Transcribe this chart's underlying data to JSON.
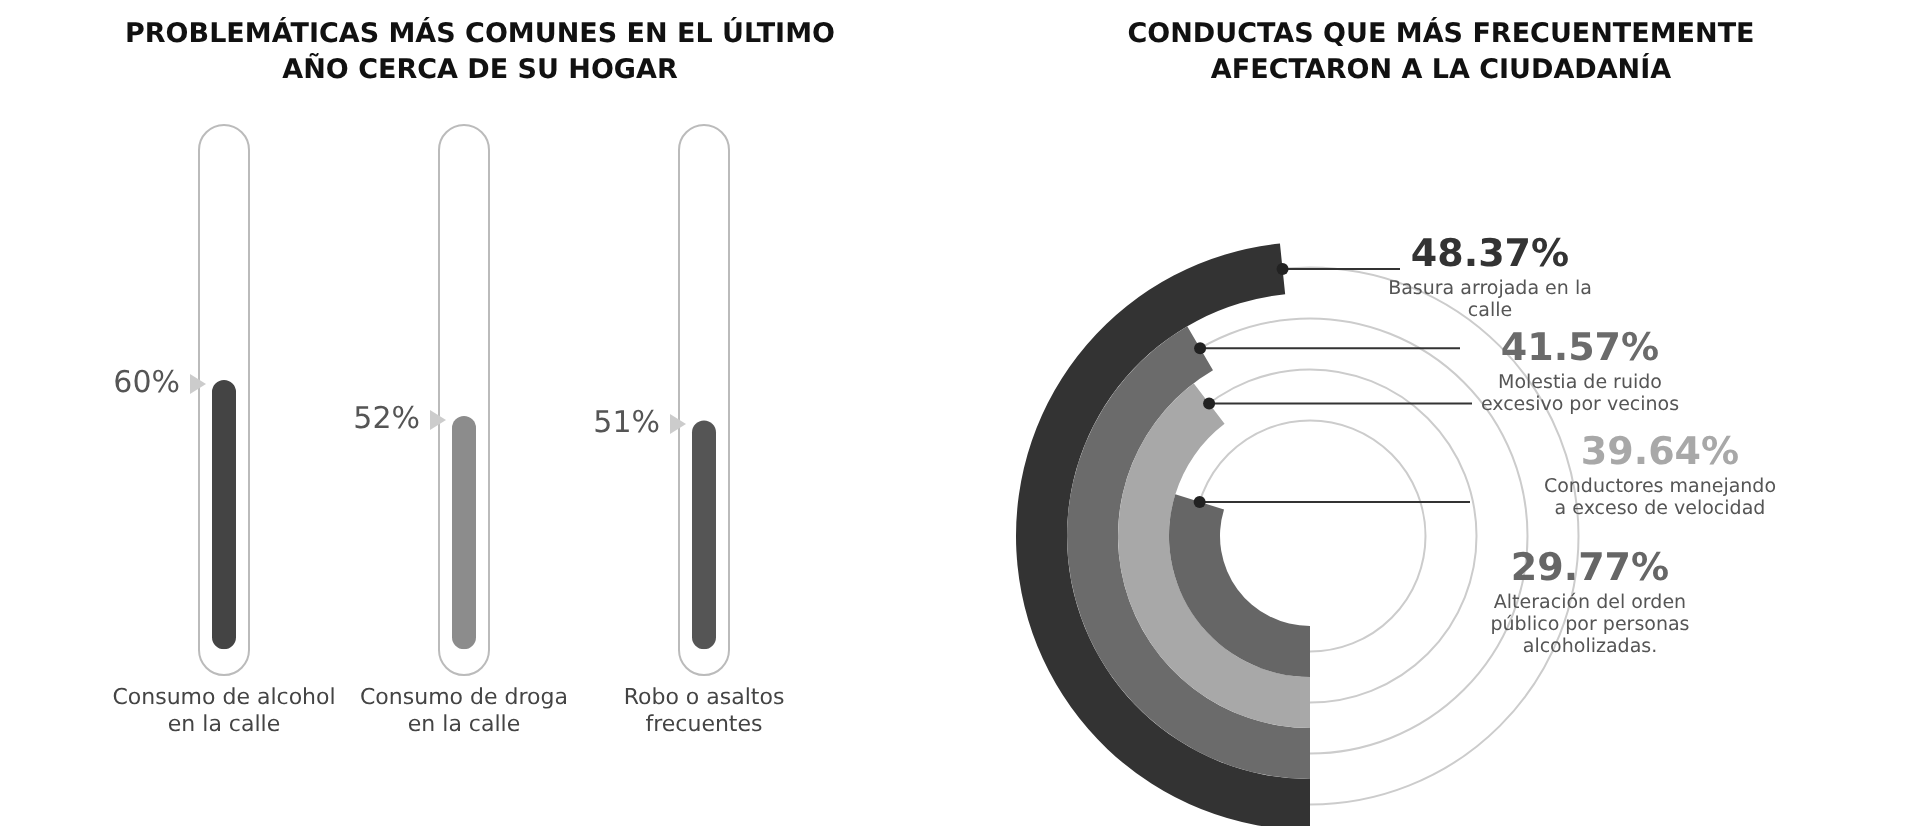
{
  "chart_data": [
    {
      "type": "bar",
      "title": "PROBLEMÁTICAS MÁS COMUNES EN EL ÚLTIMO AÑO CERCA DE SU HOGAR",
      "categories": [
        "Consumo de alcohol en la calle",
        "Consumo de droga en la calle",
        "Robo o asaltos frecuentes"
      ],
      "values": [
        60,
        52,
        51
      ],
      "value_labels": [
        "60%",
        "52%",
        "51%"
      ],
      "colors": [
        "#444444",
        "#8c8c8c",
        "#555555"
      ],
      "tick_labels": "x",
      "grid": false
    },
    {
      "type": "other",
      "title": "CONDUCTAS QUE MÁS FRECUENTEMENTE AFECTARON A LA CIUDADANÍA",
      "categories": [
        "Basura arrojada en la calle",
        "Molestia de ruido excesivo por vecinos",
        "Conductores manejando a exceso de velocidad",
        "Alteración del orden público por personas alcoholizadas."
      ],
      "values": [
        48.37,
        41.57,
        39.64,
        29.77
      ],
      "value_labels": [
        "48.37%",
        "41.57%",
        "39.64%",
        "29.77%"
      ],
      "colors": [
        "#333333",
        "#6b6b6b",
        "#a8a8a8",
        "#666666"
      ]
    }
  ]
}
